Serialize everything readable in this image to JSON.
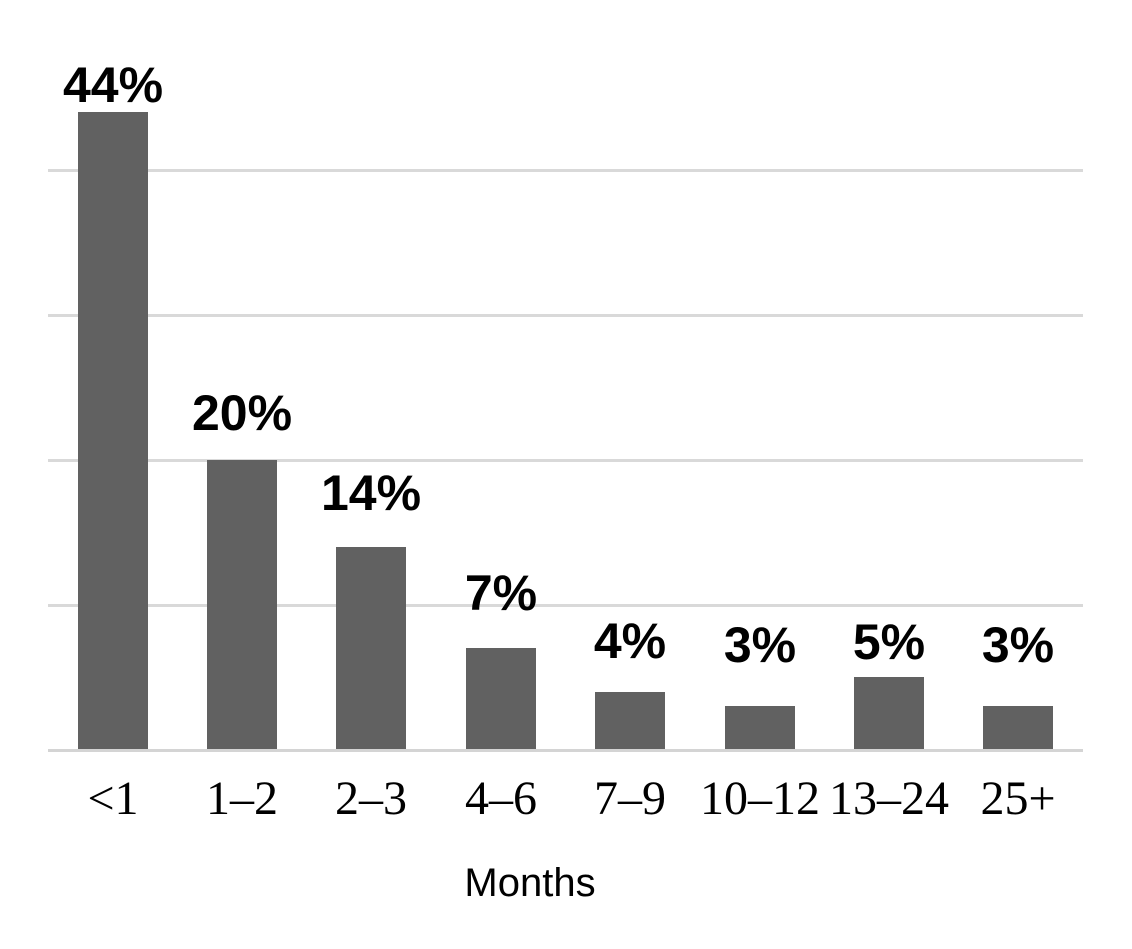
{
  "chart_data": {
    "type": "bar",
    "categories": [
      "<1",
      "1–2",
      "2–3",
      "4–6",
      "7–9",
      "10–12",
      "13–24",
      "25+"
    ],
    "values": [
      44,
      20,
      14,
      7,
      4,
      3,
      5,
      3
    ],
    "data_labels": [
      "44%",
      "20%",
      "14%",
      "7%",
      "4%",
      "3%",
      "5%",
      "3%"
    ],
    "title": "",
    "xlabel": "Months",
    "ylabel": "",
    "ylim": [
      0,
      45
    ],
    "grid_on": true,
    "grid_values": [
      10,
      20,
      30,
      40
    ],
    "legend_position": "none",
    "colors": {
      "bar": "#616161",
      "gridline": "#d9d9d9",
      "axis_line": "#d4d4d4",
      "label_text": "#000000"
    }
  }
}
